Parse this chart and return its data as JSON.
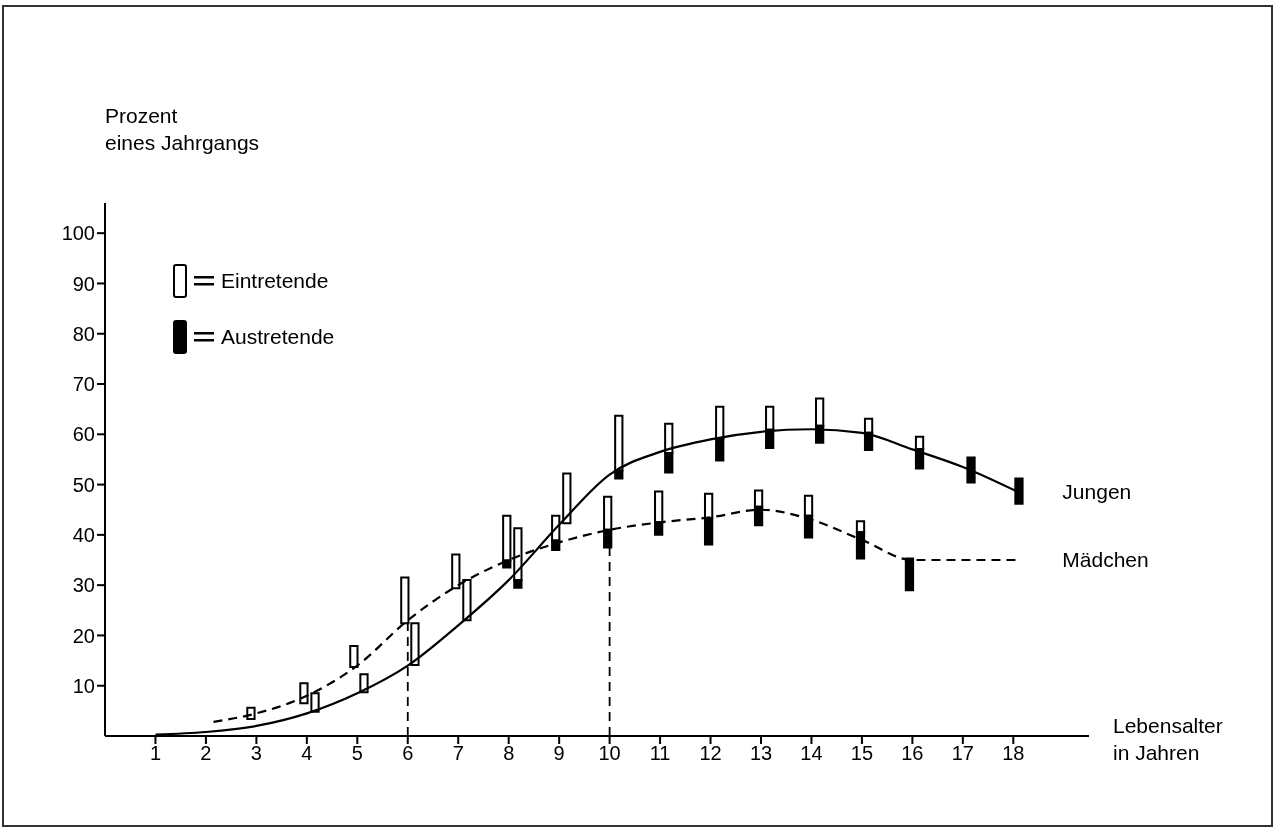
{
  "chart_data": {
    "type": "bar",
    "ylabel": "Prozent\neines Jahrgangs",
    "xlabel": "Lebensalter\nin Jahren",
    "xlim": [
      0,
      19.5
    ],
    "xticks": [
      1,
      2,
      3,
      4,
      5,
      6,
      7,
      8,
      9,
      10,
      11,
      12,
      13,
      14,
      15,
      16,
      17,
      18
    ],
    "ylim": [
      0,
      106
    ],
    "yticks": [
      10,
      20,
      30,
      40,
      50,
      60,
      70,
      80,
      90,
      100
    ],
    "legend": "top left",
    "grid": false,
    "marker": "none",
    "series": [
      {
        "name": "Eintretende",
        "type": "bar",
        "color": "#ffffff",
        "x": [
          2.9,
          3.95,
          4.17,
          4.94,
          5.14,
          5.95,
          6.15,
          6.96,
          7.18,
          7.97,
          8.19,
          8.94,
          9.16,
          9.97,
          10.19,
          10.98,
          11.18,
          11.97,
          12.19,
          12.96,
          13.18,
          13.95,
          14.17,
          14.98,
          15.14,
          16.15
        ],
        "base": [
          3.4,
          6.5,
          4.8,
          13.7,
          8.7,
          22.4,
          14.1,
          29.4,
          23,
          34.9,
          31,
          38.9,
          42.3,
          41,
          52.8,
          42.5,
          56.3,
          43.3,
          59.1,
          45.6,
          60.9,
          43.8,
          61.7,
          40.5,
          60.3,
          57.1
        ],
        "values": [
          2.2,
          4,
          3.7,
          4.2,
          3.6,
          9.1,
          8.3,
          6.7,
          8,
          8.9,
          10.3,
          4.9,
          9.9,
          6.6,
          10.9,
          6.1,
          5.8,
          4.9,
          6.4,
          3.2,
          4.6,
          4,
          5.4,
          2.2,
          2.8,
          2.4
        ]
      },
      {
        "name": "Austretende",
        "type": "bar",
        "color": "#000000",
        "x": [
          7.97,
          8.19,
          8.94,
          9.97,
          10.19,
          10.98,
          11.18,
          11.97,
          12.19,
          12.96,
          13.18,
          13.95,
          14.17,
          14.98,
          15.14,
          15.95,
          16.15,
          17.17,
          18.12
        ],
        "base": [
          33.5,
          29.5,
          37,
          37.5,
          51.2,
          40,
          52.4,
          38.1,
          54.8,
          41.9,
          57.3,
          39.5,
          58.3,
          35.3,
          56.9,
          29,
          53.2,
          50.4,
          46.2
        ],
        "values": [
          1.4,
          1.5,
          1.9,
          3.5,
          1.6,
          2.5,
          3.9,
          5.2,
          4.3,
          3.7,
          3.6,
          4.3,
          3.4,
          5.2,
          3.4,
          6.3,
          3.9,
          5,
          5
        ]
      },
      {
        "name": "Jungen",
        "type": "line",
        "color": "#000000",
        "line_style": "solid",
        "x": [
          1,
          2,
          3,
          4,
          5,
          6,
          7,
          8,
          9,
          10,
          11,
          12,
          13,
          14,
          15,
          16,
          17,
          18.1
        ],
        "values": [
          0.3,
          0.8,
          2,
          4.5,
          8.5,
          14,
          22,
          31,
          42,
          52,
          56.5,
          59,
          60.5,
          61,
          60.3,
          57,
          53.5,
          48.5
        ]
      },
      {
        "name": "Mädchen",
        "type": "line",
        "color": "#000000",
        "line_style": "dashed",
        "x": [
          2.15,
          3,
          4,
          5,
          6,
          7,
          8,
          9,
          10,
          11,
          12,
          13,
          14,
          15,
          16,
          18.1
        ],
        "values": [
          2.8,
          4.5,
          8,
          14,
          23,
          30,
          35,
          38.5,
          41,
          42.5,
          43.5,
          45,
          43,
          39,
          35,
          35
        ]
      }
    ],
    "ref_lines": [
      {
        "axis": "x",
        "value": 6,
        "line_style": "dashed",
        "color": "#000000"
      },
      {
        "axis": "x",
        "value": 10,
        "line_style": "dashed",
        "color": "#000000"
      }
    ]
  }
}
